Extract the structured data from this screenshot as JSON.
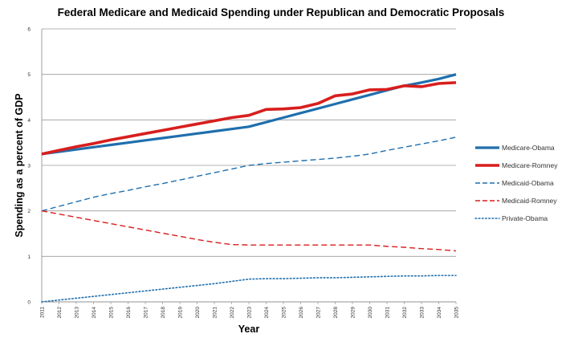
{
  "chart_data": {
    "type": "line",
    "title": "Federal Medicare and Medicaid Spending under Republican and Democratic Proposals",
    "xlabel": "Year",
    "ylabel": "Spending as a percent of GDP",
    "ylim": [
      0,
      6
    ],
    "yticks": [
      "0",
      "1",
      "2",
      "3",
      "4",
      "5",
      "6"
    ],
    "grid": "horizontal",
    "legend_position": "right",
    "categories": [
      "2011",
      "2012",
      "2013",
      "2014",
      "2015",
      "2016",
      "2017",
      "2018",
      "2019",
      "2020",
      "2021",
      "2022",
      "2023",
      "2024",
      "2025",
      "2026",
      "2027",
      "2028",
      "2029",
      "2030",
      "2031",
      "2032",
      "2033",
      "2034",
      "2035"
    ],
    "series": [
      {
        "name": "Medicare-Obama",
        "color": "#1f6fad",
        "style": "solid",
        "width": 3.2,
        "values": [
          3.25,
          3.3,
          3.35,
          3.4,
          3.45,
          3.5,
          3.55,
          3.6,
          3.65,
          3.7,
          3.75,
          3.8,
          3.85,
          3.95,
          4.05,
          4.15,
          4.25,
          4.35,
          4.45,
          4.55,
          4.65,
          4.75,
          4.82,
          4.9,
          5.0
        ]
      },
      {
        "name": "Medicare-Romney",
        "color": "#d81e1e",
        "style": "solid",
        "width": 3.6,
        "values": [
          3.25,
          3.33,
          3.41,
          3.48,
          3.56,
          3.63,
          3.7,
          3.77,
          3.84,
          3.91,
          3.98,
          4.05,
          4.1,
          4.23,
          4.24,
          4.27,
          4.36,
          4.53,
          4.57,
          4.66,
          4.67,
          4.75,
          4.73,
          4.8,
          4.82
        ]
      },
      {
        "name": "Medicaid-Obama",
        "color": "#1f6fad",
        "style": "dashed",
        "width": 1.4,
        "values": [
          2.0,
          2.1,
          2.2,
          2.3,
          2.38,
          2.45,
          2.53,
          2.6,
          2.68,
          2.76,
          2.84,
          2.92,
          3.0,
          3.04,
          3.07,
          3.1,
          3.13,
          3.16,
          3.2,
          3.25,
          3.33,
          3.4,
          3.47,
          3.54,
          3.62
        ]
      },
      {
        "name": "Medicaid-Romney",
        "color": "#d81e1e",
        "style": "dashed",
        "width": 1.4,
        "values": [
          2.0,
          1.93,
          1.86,
          1.79,
          1.72,
          1.65,
          1.58,
          1.51,
          1.44,
          1.37,
          1.31,
          1.26,
          1.25,
          1.25,
          1.25,
          1.25,
          1.25,
          1.25,
          1.25,
          1.25,
          1.22,
          1.2,
          1.17,
          1.15,
          1.12
        ]
      },
      {
        "name": "Private-Obama",
        "color": "#1f6fad",
        "style": "dotted",
        "width": 1.6,
        "values": [
          0.0,
          0.04,
          0.08,
          0.12,
          0.16,
          0.2,
          0.24,
          0.28,
          0.32,
          0.36,
          0.4,
          0.45,
          0.5,
          0.51,
          0.51,
          0.52,
          0.53,
          0.53,
          0.54,
          0.55,
          0.56,
          0.57,
          0.57,
          0.58,
          0.58
        ]
      }
    ]
  }
}
